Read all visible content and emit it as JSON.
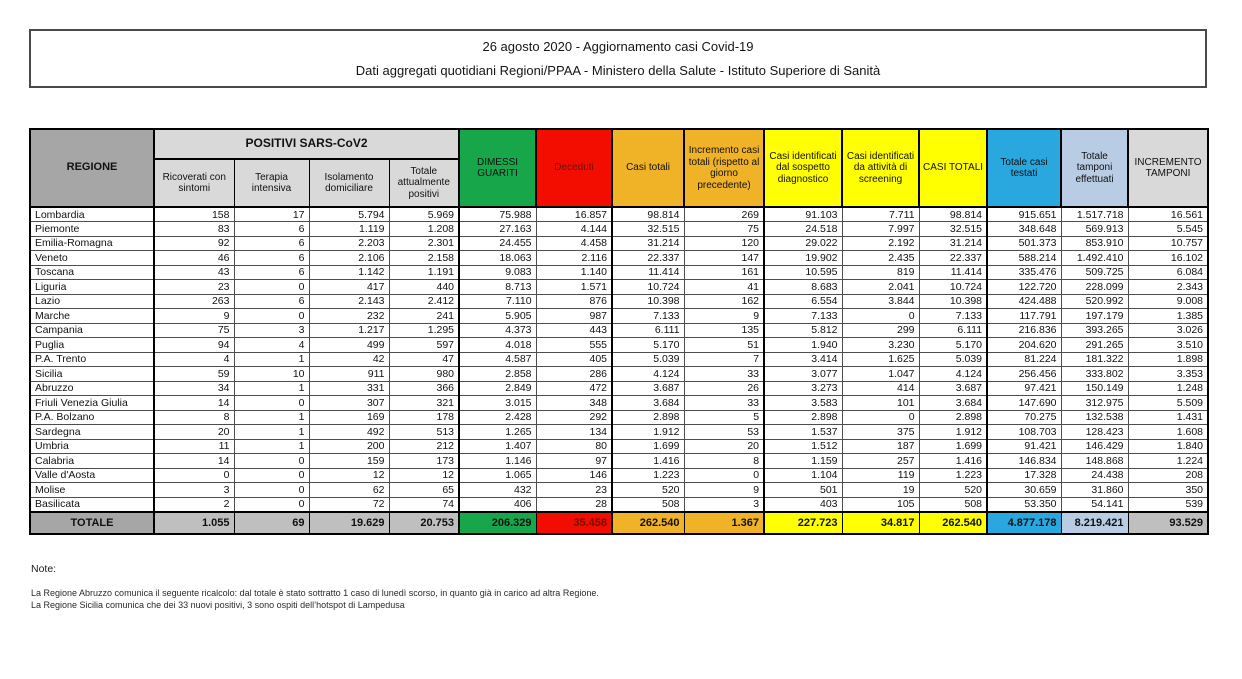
{
  "title": {
    "line1": "26 agosto 2020 - Aggiornamento casi Covid-19",
    "line2": "Dati aggregati quotidiani Regioni/PPAA - Ministero della Salute - Istituto Superiore di Sanità"
  },
  "table": {
    "group_header": "POSITIVI SARS-CoV2",
    "columns": [
      "REGIONE",
      "Ricoverati con sintomi",
      "Terapia intensiva",
      "Isolamento domiciliare",
      "Totale attualmente positivi",
      "DIMESSI GUARITI",
      "Deceduti",
      "Casi totali",
      "Incremento casi totali (rispetto al giorno precedente)",
      "Casi identificati dal sospetto diagnostico",
      "Casi identificati da attività di screening",
      "CASI TOTALI",
      "Totale casi testati",
      "Totale tamponi effettuati",
      "INCREMENTO TAMPONI"
    ],
    "rows": [
      {
        "region": "Lombardia",
        "values": [
          "158",
          "17",
          "5.794",
          "5.969",
          "75.988",
          "16.857",
          "98.814",
          "269",
          "91.103",
          "7.711",
          "98.814",
          "915.651",
          "1.517.718",
          "16.561"
        ]
      },
      {
        "region": "Piemonte",
        "values": [
          "83",
          "6",
          "1.119",
          "1.208",
          "27.163",
          "4.144",
          "32.515",
          "75",
          "24.518",
          "7.997",
          "32.515",
          "348.648",
          "569.913",
          "5.545"
        ]
      },
      {
        "region": "Emilia-Romagna",
        "values": [
          "92",
          "6",
          "2.203",
          "2.301",
          "24.455",
          "4.458",
          "31.214",
          "120",
          "29.022",
          "2.192",
          "31.214",
          "501.373",
          "853.910",
          "10.757"
        ]
      },
      {
        "region": "Veneto",
        "values": [
          "46",
          "6",
          "2.106",
          "2.158",
          "18.063",
          "2.116",
          "22.337",
          "147",
          "19.902",
          "2.435",
          "22.337",
          "588.214",
          "1.492.410",
          "16.102"
        ]
      },
      {
        "region": "Toscana",
        "values": [
          "43",
          "6",
          "1.142",
          "1.191",
          "9.083",
          "1.140",
          "11.414",
          "161",
          "10.595",
          "819",
          "11.414",
          "335.476",
          "509.725",
          "6.084"
        ]
      },
      {
        "region": "Liguria",
        "values": [
          "23",
          "0",
          "417",
          "440",
          "8.713",
          "1.571",
          "10.724",
          "41",
          "8.683",
          "2.041",
          "10.724",
          "122.720",
          "228.099",
          "2.343"
        ]
      },
      {
        "region": "Lazio",
        "values": [
          "263",
          "6",
          "2.143",
          "2.412",
          "7.110",
          "876",
          "10.398",
          "162",
          "6.554",
          "3.844",
          "10.398",
          "424.488",
          "520.992",
          "9.008"
        ]
      },
      {
        "region": "Marche",
        "values": [
          "9",
          "0",
          "232",
          "241",
          "5.905",
          "987",
          "7.133",
          "9",
          "7.133",
          "0",
          "7.133",
          "117.791",
          "197.179",
          "1.385"
        ]
      },
      {
        "region": "Campania",
        "values": [
          "75",
          "3",
          "1.217",
          "1.295",
          "4.373",
          "443",
          "6.111",
          "135",
          "5.812",
          "299",
          "6.111",
          "216.836",
          "393.265",
          "3.026"
        ]
      },
      {
        "region": "Puglia",
        "values": [
          "94",
          "4",
          "499",
          "597",
          "4.018",
          "555",
          "5.170",
          "51",
          "1.940",
          "3.230",
          "5.170",
          "204.620",
          "291.265",
          "3.510"
        ]
      },
      {
        "region": "P.A. Trento",
        "values": [
          "4",
          "1",
          "42",
          "47",
          "4.587",
          "405",
          "5.039",
          "7",
          "3.414",
          "1.625",
          "5.039",
          "81.224",
          "181.322",
          "1.898"
        ]
      },
      {
        "region": "Sicilia",
        "values": [
          "59",
          "10",
          "911",
          "980",
          "2.858",
          "286",
          "4.124",
          "33",
          "3.077",
          "1.047",
          "4.124",
          "256.456",
          "333.802",
          "3.353"
        ]
      },
      {
        "region": "Abruzzo",
        "values": [
          "34",
          "1",
          "331",
          "366",
          "2.849",
          "472",
          "3.687",
          "26",
          "3.273",
          "414",
          "3.687",
          "97.421",
          "150.149",
          "1.248"
        ]
      },
      {
        "region": "Friuli Venezia Giulia",
        "values": [
          "14",
          "0",
          "307",
          "321",
          "3.015",
          "348",
          "3.684",
          "33",
          "3.583",
          "101",
          "3.684",
          "147.690",
          "312.975",
          "5.509"
        ]
      },
      {
        "region": "P.A. Bolzano",
        "values": [
          "8",
          "1",
          "169",
          "178",
          "2.428",
          "292",
          "2.898",
          "5",
          "2.898",
          "0",
          "2.898",
          "70.275",
          "132.538",
          "1.431"
        ]
      },
      {
        "region": "Sardegna",
        "values": [
          "20",
          "1",
          "492",
          "513",
          "1.265",
          "134",
          "1.912",
          "53",
          "1.537",
          "375",
          "1.912",
          "108.703",
          "128.423",
          "1.608"
        ]
      },
      {
        "region": "Umbria",
        "values": [
          "11",
          "1",
          "200",
          "212",
          "1.407",
          "80",
          "1.699",
          "20",
          "1.512",
          "187",
          "1.699",
          "91.421",
          "146.429",
          "1.840"
        ]
      },
      {
        "region": "Calabria",
        "values": [
          "14",
          "0",
          "159",
          "173",
          "1.146",
          "97",
          "1.416",
          "8",
          "1.159",
          "257",
          "1.416",
          "146.834",
          "148.868",
          "1.224"
        ]
      },
      {
        "region": "Valle d'Aosta",
        "values": [
          "0",
          "0",
          "12",
          "12",
          "1.065",
          "146",
          "1.223",
          "0",
          "1.104",
          "119",
          "1.223",
          "17.328",
          "24.438",
          "208"
        ]
      },
      {
        "region": "Molise",
        "values": [
          "3",
          "0",
          "62",
          "65",
          "432",
          "23",
          "520",
          "9",
          "501",
          "19",
          "520",
          "30.659",
          "31.860",
          "350"
        ]
      },
      {
        "region": "Basilicata",
        "values": [
          "2",
          "0",
          "72",
          "74",
          "406",
          "28",
          "508",
          "3",
          "403",
          "105",
          "508",
          "53.350",
          "54.141",
          "539"
        ]
      }
    ],
    "total_label": "TOTALE",
    "total": [
      "1.055",
      "69",
      "19.629",
      "20.753",
      "206.329",
      "35.458",
      "262.540",
      "1.367",
      "227.723",
      "34.817",
      "262.540",
      "4.877.178",
      "8.219.421",
      "93.529"
    ]
  },
  "notes": {
    "heading": "Note:",
    "lines": [
      "La Regione Abruzzo comunica il seguente ricalcolo: dal totale è stato sottratto 1 caso di lunedì scorso, in quanto già in carico ad altra Regione.",
      "La Regione Sicilia comunica che dei 33 nuovi positivi, 3 sono ospiti dell’hotspot di Lampedusa"
    ]
  },
  "colors": {
    "gray_dark": "#A6A6A6",
    "gray_mid": "#BFBFBF",
    "gray_light": "#D9D9D9",
    "green": "#17A64A",
    "red": "#F20D00",
    "red_text": "#6E1100",
    "orange": "#F0B226",
    "yellow": "#FFFF00",
    "blue": "#29A8E0",
    "lightblue": "#B8CCE4"
  }
}
